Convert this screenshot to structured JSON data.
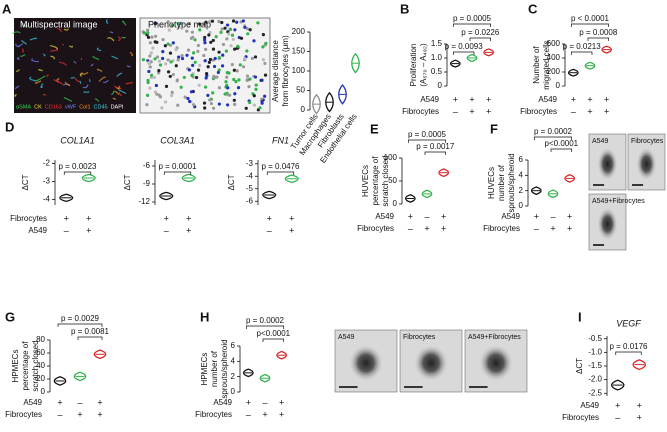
{
  "chart_data": [
    {
      "type": "violin",
      "ylabel": [
        "Average distance",
        "from fibrocytes (μm)"
      ],
      "categories": [
        "Tumor cells",
        "Macrophages",
        "Fibroblasts",
        "Endothelial cells"
      ],
      "values": [
        15,
        20,
        40,
        120
      ],
      "colors": [
        "#8c8c8c",
        "#111111",
        "#2233bb",
        "#2fb34a"
      ],
      "ylim": [
        0,
        200
      ],
      "yticks": [
        0,
        50,
        100,
        150,
        200
      ]
    },
    {
      "type": "violin",
      "panel": "B",
      "ylabel": [
        "Proliferation",
        "(A₅₇₀ – A₄₉₂)"
      ],
      "values": [
        0.8,
        1.0,
        1.2
      ],
      "colors": [
        "#111111",
        "#2fb34a",
        "#d62728"
      ],
      "ylim": [
        0,
        1.5
      ],
      "yticks": [
        0,
        0.5,
        {
          "value": 1,
          "label": "1.0"
        },
        1.5
      ],
      "p_values": [
        "p = 0.0005",
        "p = 0.0226",
        "p = 0.0093"
      ],
      "rows": [
        {
          "name": "A549",
          "signs": [
            "+",
            "+",
            "+"
          ]
        },
        {
          "name": "Fibrocytes",
          "signs": [
            "–",
            "+",
            "+"
          ]
        }
      ]
    },
    {
      "type": "violin",
      "panel": "C",
      "ylabel": [
        "Number of",
        "migrated cells"
      ],
      "values": [
        190,
        290,
        520
      ],
      "colors": [
        "#111111",
        "#2fb34a",
        "#d62728"
      ],
      "ylim": [
        0,
        600
      ],
      "yticks": [
        0,
        200,
        400,
        600
      ],
      "p_values": [
        "p < 0.0001",
        "p = 0.0008",
        "p = 0.0213"
      ],
      "rows": [
        {
          "name": "A549",
          "signs": [
            "+",
            "+",
            "+"
          ]
        },
        {
          "name": "Fibrocytes",
          "signs": [
            "–",
            "+",
            "+"
          ]
        }
      ]
    },
    {
      "type": "violin",
      "panel": "D",
      "title": "COL1A1",
      "ylabel": [
        "ΔCT"
      ],
      "values": [
        -3.9,
        -2.8
      ],
      "colors": [
        "#111111",
        "#2fb34a"
      ],
      "ylim": [
        -4.3,
        -1.8
      ],
      "yticks": [
        -4,
        -3,
        -2
      ],
      "p_values": [
        "p = 0.0023"
      ],
      "rows": [
        {
          "name": "Fibrocytes",
          "signs": [
            "+",
            "+"
          ]
        },
        {
          "name": "A549",
          "signs": [
            "–",
            "+"
          ]
        }
      ]
    },
    {
      "type": "violin",
      "title": "COL3A1",
      "ylabel": [
        "ΔCT"
      ],
      "values": [
        -11,
        -8
      ],
      "colors": [
        "#111111",
        "#2fb34a"
      ],
      "ylim": [
        -12.5,
        -5
      ],
      "yticks": [
        -12,
        -9,
        -6
      ],
      "p_values": [
        "p = 0.0001"
      ],
      "rows": [
        {
          "signs": [
            "+",
            "+"
          ]
        },
        {
          "signs": [
            "–",
            "+"
          ]
        }
      ]
    },
    {
      "type": "violin",
      "title": "FN1",
      "ylabel": [
        "ΔCT"
      ],
      "values": [
        -5.5,
        -4.2
      ],
      "colors": [
        "#111111",
        "#2fb34a"
      ],
      "ylim": [
        -6.3,
        -2.7
      ],
      "yticks": [
        -6,
        -5,
        -4,
        -3
      ],
      "p_values": [
        "p = 0.0476"
      ],
      "rows": [
        {
          "signs": [
            "+",
            "+"
          ]
        },
        {
          "signs": [
            "–",
            "+"
          ]
        }
      ]
    },
    {
      "type": "violin",
      "panel": "E",
      "ylabel": [
        "HUVECs",
        "percentage of",
        "scratch closed"
      ],
      "values": [
        12,
        22,
        68
      ],
      "colors": [
        "#111111",
        "#2fb34a",
        "#d62728"
      ],
      "ylim": [
        0,
        100
      ],
      "yticks": [
        0,
        50,
        100
      ],
      "p_values": [
        "p = 0.0005",
        "p = 0.0017"
      ],
      "rows": [
        {
          "name": "A549",
          "signs": [
            "+",
            "–",
            "+"
          ]
        },
        {
          "name": "Fibrocytes",
          "signs": [
            "–",
            "+",
            "+"
          ]
        }
      ]
    },
    {
      "type": "violin",
      "panel": "F",
      "ylabel": [
        "HUVECs",
        "number of",
        "sprouts/spheroid"
      ],
      "values": [
        2,
        1.6,
        3.6
      ],
      "colors": [
        "#111111",
        "#2fb34a",
        "#d62728"
      ],
      "ylim": [
        0,
        6
      ],
      "yticks": [
        0,
        2,
        4,
        6
      ],
      "p_values": [
        "p = 0.0002",
        "p<0.0001"
      ],
      "rows": [
        {
          "name": "A549",
          "signs": [
            "+",
            "–",
            "+"
          ]
        },
        {
          "name": "Fibrocytes",
          "signs": [
            "–",
            "+",
            "+"
          ]
        }
      ]
    },
    {
      "type": "violin",
      "panel": "G",
      "ylabel": [
        "HPMECs",
        "percentage of",
        "scratch closed"
      ],
      "values": [
        17,
        24,
        58
      ],
      "colors": [
        "#111111",
        "#2fb34a",
        "#d62728"
      ],
      "ylim": [
        0,
        80
      ],
      "yticks": [
        0,
        20,
        40,
        60,
        80
      ],
      "p_values": [
        "p = 0.0029",
        "p = 0.0081"
      ],
      "rows": [
        {
          "name": "A549",
          "signs": [
            "+",
            "–",
            "+"
          ]
        },
        {
          "name": "Fibrocytes",
          "signs": [
            "–",
            "+",
            "+"
          ]
        }
      ]
    },
    {
      "type": "violin",
      "panel": "H",
      "ylabel": [
        "HPMECs",
        "number of",
        "sprouts/spheroid"
      ],
      "values": [
        2.5,
        1.8,
        4.8
      ],
      "colors": [
        "#111111",
        "#2fb34a",
        "#d62728"
      ],
      "ylim": [
        0,
        6
      ],
      "yticks": [
        0,
        2,
        4,
        6
      ],
      "p_values": [
        "p = 0.0002",
        "p<0.0001"
      ],
      "rows": [
        {
          "name": "A549",
          "signs": [
            "+",
            "–",
            "+"
          ]
        },
        {
          "name": "Fibrocytes",
          "signs": [
            "–",
            "+",
            "+"
          ]
        }
      ]
    },
    {
      "type": "violin",
      "panel": "I",
      "title": "VEGF",
      "ylabel": [
        "ΔCT"
      ],
      "values": [
        -2.2,
        -1.45
      ],
      "colors": [
        "#111111",
        "#d62728"
      ],
      "ylim": [
        -2.6,
        -0.4
      ],
      "yticks": [
        -2.5,
        {
          "value": -2,
          "label": "-2.0"
        },
        -1.5,
        {
          "value": -1,
          "label": "-1.0"
        },
        -0.5
      ],
      "p_values": [
        "p = 0.0176"
      ],
      "rows": [
        {
          "name": "A549",
          "signs": [
            "+",
            "+"
          ]
        },
        {
          "name": "Fibrocytes",
          "signs": [
            "–",
            "+"
          ]
        }
      ]
    }
  ],
  "images": {
    "A": {
      "panel": "A",
      "titles": [
        "Multispectral image",
        "Phenotype map"
      ],
      "markers": [
        "αSMA",
        "CK",
        "CD163",
        "vWF",
        "Col1",
        "CD45",
        "DAPI"
      ],
      "marker_colors": [
        "#39d353",
        "#f2e03a",
        "#ff3030",
        "#7a86ff",
        "#ff9a2a",
        "#3ad6f0",
        "#ffffff"
      ]
    },
    "F": {
      "captions": [
        "A549",
        "Fibrocytes",
        "A549+Fibrocytes"
      ]
    },
    "H": {
      "captions": [
        "A549",
        "Fibrocytes",
        "A549+Fibrocytes"
      ]
    }
  }
}
